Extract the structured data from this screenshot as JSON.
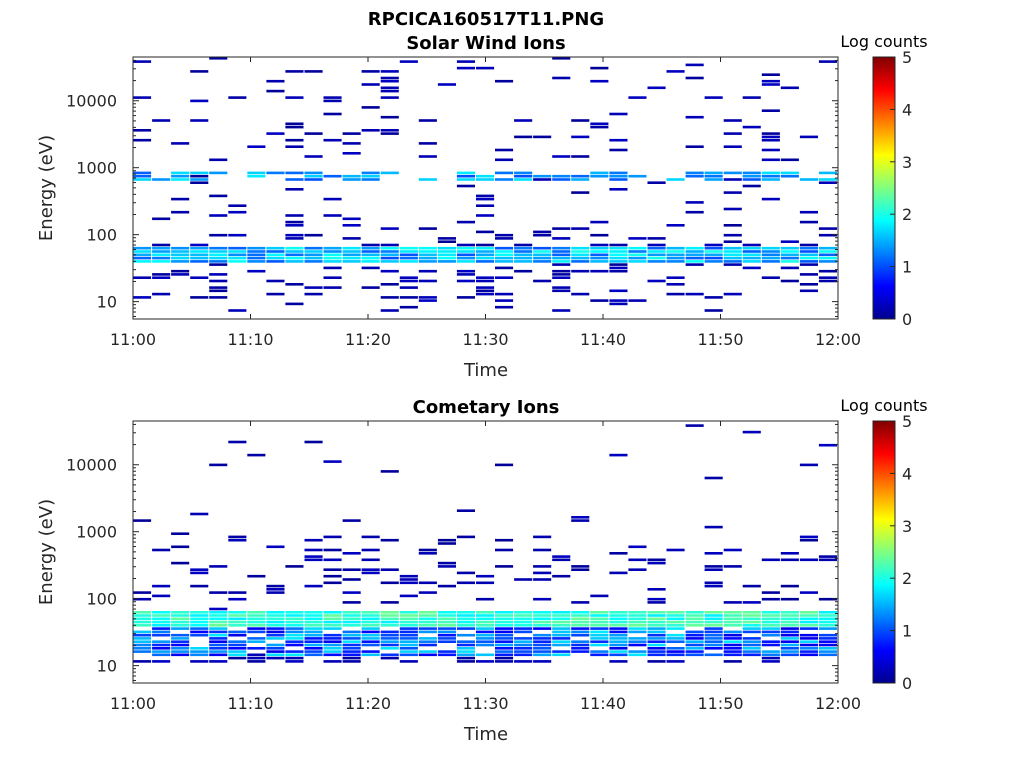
{
  "figure_title": "RPCICA160517T11.PNG",
  "colorbar_label": "Log counts",
  "colormap": [
    "#00008f",
    "#0000ff",
    "#00ffff",
    "#ffff00",
    "#ff0000",
    "#800000"
  ],
  "chart_data": [
    {
      "type": "heatmap",
      "title": "Solar Wind Ions",
      "xlabel": "Time",
      "ylabel": "Energy (eV)",
      "xlim": [
        "11:00",
        "12:00"
      ],
      "ylim": [
        5.5,
        45000
      ],
      "yscale": "log",
      "xticks": [
        "11:00",
        "11:10",
        "11:20",
        "11:30",
        "11:40",
        "11:50",
        "12:00"
      ],
      "yticks": [
        10,
        100,
        1000,
        10000
      ],
      "ytick_labels": [
        "10",
        "100",
        "1000",
        "10000"
      ],
      "colorbar": {
        "label": "Log counts",
        "range": [
          0,
          5
        ],
        "ticks": [
          "0",
          "1",
          "2",
          "3",
          "4",
          "5"
        ]
      },
      "description_bands": [
        {
          "energy_eV": [
            38,
            65
          ],
          "log_counts": [
            1.0,
            2.0
          ],
          "note": "continuous band across full hour"
        },
        {
          "energy_eV": [
            600,
            850
          ],
          "log_counts": [
            1.0,
            1.8
          ],
          "note": "intermittent band"
        }
      ]
    },
    {
      "type": "heatmap",
      "title": "Cometary Ions",
      "xlabel": "Time",
      "ylabel": "Energy (eV)",
      "xlim": [
        "11:00",
        "12:00"
      ],
      "ylim": [
        5.5,
        45000
      ],
      "yscale": "log",
      "xticks": [
        "11:00",
        "11:10",
        "11:20",
        "11:30",
        "11:40",
        "11:50",
        "12:00"
      ],
      "yticks": [
        10,
        100,
        1000,
        10000
      ],
      "ytick_labels": [
        "10",
        "100",
        "1000",
        "10000"
      ],
      "colorbar": {
        "label": "Log counts",
        "range": [
          0,
          5
        ],
        "ticks": [
          "0",
          "1",
          "2",
          "3",
          "4",
          "5"
        ]
      },
      "description_bands": [
        {
          "energy_eV": [
            38,
            65
          ],
          "log_counts": [
            1.8,
            2.4
          ],
          "note": "strongest continuous band"
        },
        {
          "energy_eV": [
            14,
            38
          ],
          "log_counts": [
            0.5,
            1.8
          ],
          "note": "alternating band"
        }
      ]
    }
  ]
}
